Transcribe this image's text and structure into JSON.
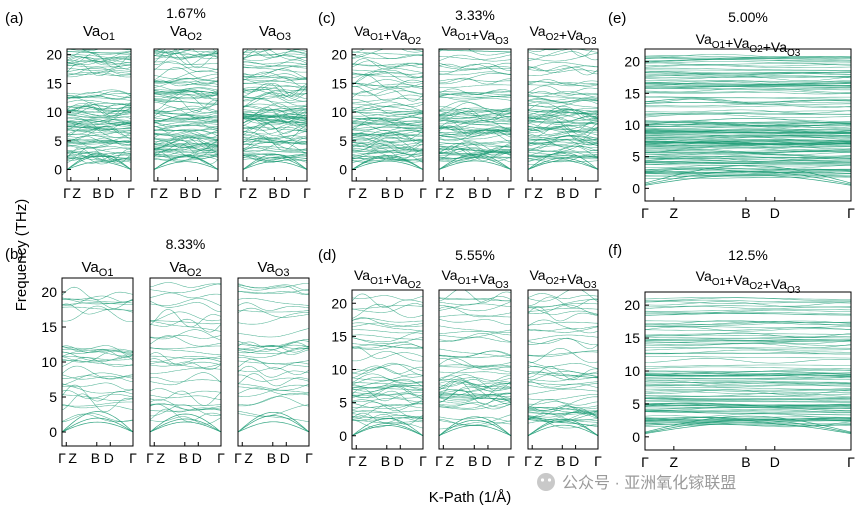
{
  "figure": {
    "ylabel": "Frequency (THz)",
    "xlabel": "K-Path (1/Å)",
    "line_color": "#1e9c76",
    "watermark": "公众号 · 亚洲氧化镓联盟"
  },
  "chart_data": [
    {
      "id": "a1",
      "group": "a",
      "group_label": "(a)",
      "type": "line",
      "title": "Va_O1",
      "concentration": "",
      "density": 100,
      "ylim": [
        -2,
        21
      ],
      "yticks": [
        0,
        5,
        10,
        15,
        20
      ],
      "xticks": [
        "Γ",
        "Z",
        "B",
        "D",
        "Γ"
      ]
    },
    {
      "id": "a2",
      "group": "a",
      "type": "line",
      "title": "Va_O2",
      "concentration": "1.67%",
      "density": 100,
      "ylim": [
        -2,
        21
      ],
      "yticks": [],
      "xticks": [
        "Γ",
        "Z",
        "B",
        "D",
        "Γ"
      ]
    },
    {
      "id": "a3",
      "group": "a",
      "type": "line",
      "title": "Va_O3",
      "concentration": "",
      "density": 100,
      "ylim": [
        -2,
        21
      ],
      "yticks": [],
      "xticks": [
        "Γ",
        "Z",
        "B",
        "D",
        "Γ"
      ]
    },
    {
      "id": "b1",
      "group": "b",
      "group_label": "(b)",
      "type": "line",
      "title": "Va_O1",
      "concentration": "",
      "density": 35,
      "ylim": [
        -2,
        22
      ],
      "yticks": [
        0,
        5,
        10,
        15,
        20
      ],
      "xticks": [
        "Γ",
        "Z",
        "B",
        "D",
        "Γ"
      ]
    },
    {
      "id": "b2",
      "group": "b",
      "type": "line",
      "title": "Va_O2",
      "concentration": "8.33%",
      "density": 35,
      "ylim": [
        -2,
        22
      ],
      "yticks": [],
      "xticks": [
        "Γ",
        "Z",
        "B",
        "D",
        "Γ"
      ]
    },
    {
      "id": "b3",
      "group": "b",
      "type": "line",
      "title": "Va_O3",
      "concentration": "",
      "density": 35,
      "ylim": [
        -2,
        22
      ],
      "yticks": [],
      "xticks": [
        "Γ",
        "Z",
        "B",
        "D",
        "Γ"
      ]
    },
    {
      "id": "c1",
      "group": "c",
      "group_label": "(c)",
      "type": "line",
      "title": "Va_O1+Va_O2",
      "concentration": "",
      "density": 85,
      "ylim": [
        -2,
        21
      ],
      "yticks": [
        0,
        5,
        10,
        15,
        20
      ],
      "xticks": [
        "Γ",
        "Z",
        "B",
        "D",
        "Γ"
      ]
    },
    {
      "id": "c2",
      "group": "c",
      "type": "line",
      "title": "Va_O1+Va_O3",
      "concentration": "3.33%",
      "density": 85,
      "ylim": [
        -2,
        21
      ],
      "yticks": [],
      "xticks": [
        "Γ",
        "Z",
        "B",
        "D",
        "Γ"
      ]
    },
    {
      "id": "c3",
      "group": "c",
      "type": "line",
      "title": "Va_O2+Va_O3",
      "concentration": "",
      "density": 85,
      "ylim": [
        -2,
        21
      ],
      "yticks": [],
      "xticks": [
        "Γ",
        "Z",
        "B",
        "D",
        "Γ"
      ]
    },
    {
      "id": "d1",
      "group": "d",
      "group_label": "(d)",
      "type": "line",
      "title": "Va_O1+Va_O2",
      "concentration": "",
      "density": 55,
      "ylim": [
        -2,
        22
      ],
      "yticks": [
        0,
        5,
        10,
        15,
        20
      ],
      "xticks": [
        "Γ",
        "Z",
        "B",
        "D",
        "Γ"
      ]
    },
    {
      "id": "d2",
      "group": "d",
      "type": "line",
      "title": "Va_O1+Va_O3",
      "concentration": "5.55%",
      "density": 55,
      "ylim": [
        -2,
        22
      ],
      "yticks": [],
      "xticks": [
        "Γ",
        "Z",
        "B",
        "D",
        "Γ"
      ]
    },
    {
      "id": "d3",
      "group": "d",
      "type": "line",
      "title": "Va_O2+Va_O3",
      "concentration": "",
      "density": 55,
      "ylim": [
        -2,
        22
      ],
      "yticks": [],
      "xticks": [
        "Γ",
        "Z",
        "B",
        "D",
        "Γ"
      ]
    },
    {
      "id": "e",
      "group": "e",
      "group_label": "(e)",
      "type": "line",
      "title": "Va_O1+Va_O2+Va_O3",
      "concentration": "5.00%",
      "density": 150,
      "ylim": [
        -2,
        22
      ],
      "yticks": [
        0,
        5,
        10,
        15,
        20
      ],
      "xticks": [
        "Γ",
        "Z",
        "B",
        "D",
        "Γ"
      ]
    },
    {
      "id": "f",
      "group": "f",
      "group_label": "(f)",
      "type": "line",
      "title": "Va_O1+Va_O2+Va_O3",
      "concentration": "12.5%",
      "density": 110,
      "ylim": [
        -2,
        22
      ],
      "yticks": [
        0,
        5,
        10,
        15,
        20
      ],
      "xticks": [
        "Γ",
        "Z",
        "B",
        "D",
        "Γ"
      ]
    }
  ]
}
